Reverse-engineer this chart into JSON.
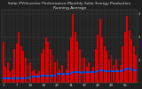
{
  "title": "Solar PV/Inverter Performance Monthly Solar Energy Production Running Average",
  "bar_values": [
    1.8,
    0.7,
    0.9,
    0.5,
    0.6,
    1.5,
    1.7,
    2.2,
    1.6,
    1.4,
    1.1,
    0.8,
    0.9,
    0.5,
    0.6,
    0.4,
    0.5,
    1.3,
    1.5,
    2.0,
    1.8,
    1.5,
    1.2,
    0.9,
    1.0,
    0.6,
    0.8,
    0.4,
    0.6,
    1.4,
    2.0,
    3.0,
    2.2,
    1.8,
    1.5,
    1.1,
    1.1,
    0.7,
    0.9,
    0.5,
    0.7,
    1.5,
    2.1,
    2.8,
    2.0,
    1.6,
    1.4,
    1.0,
    1.2,
    0.8,
    1.0,
    0.6,
    0.8,
    1.6,
    2.2,
    2.9,
    2.3,
    1.9,
    1.6,
    1.2
  ],
  "running_avg": [
    0.2,
    0.2,
    0.2,
    0.2,
    0.2,
    0.22,
    0.22,
    0.22,
    0.22,
    0.22,
    0.22,
    0.22,
    0.28,
    0.28,
    0.28,
    0.28,
    0.28,
    0.3,
    0.3,
    0.32,
    0.32,
    0.32,
    0.32,
    0.32,
    0.38,
    0.38,
    0.38,
    0.38,
    0.38,
    0.4,
    0.42,
    0.48,
    0.48,
    0.46,
    0.46,
    0.44,
    0.46,
    0.46,
    0.46,
    0.46,
    0.46,
    0.48,
    0.52,
    0.56,
    0.56,
    0.52,
    0.52,
    0.5,
    0.52,
    0.52,
    0.52,
    0.52,
    0.52,
    0.54,
    0.58,
    0.62,
    0.62,
    0.58,
    0.56,
    0.54
  ],
  "bar_color": "#dd0000",
  "avg_color": "#0055ff",
  "bg_color": "#202020",
  "plot_bg_color": "#202020",
  "grid_color": "#555555",
  "text_color": "#dddddd",
  "ylim": [
    0,
    3.2
  ],
  "ytick_labels": [
    "",
    "1",
    "2",
    "3"
  ],
  "ytick_vals": [
    0,
    1.0,
    2.0,
    3.0
  ],
  "title_fontsize": 3.2,
  "tick_fontsize": 2.8,
  "bar_width": 0.75
}
